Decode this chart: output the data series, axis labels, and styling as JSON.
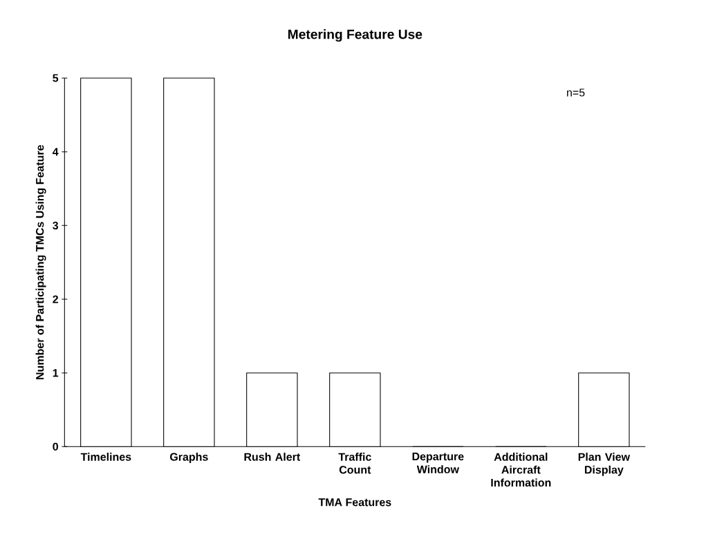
{
  "chart_data": {
    "type": "bar",
    "title": "Metering Feature Use",
    "xlabel": "TMA Features",
    "ylabel": "Number of Participating TMCs Using Feature",
    "categories": [
      "Timelines",
      "Graphs",
      "Rush Alert",
      "Traffic Count",
      "Departure Window",
      "Additional Aircraft Information",
      "Plan View Display"
    ],
    "values": [
      5,
      5,
      1,
      1,
      0,
      0,
      1
    ],
    "color": "#ffffff",
    "ylim": [
      0,
      5
    ],
    "yticks": [
      0,
      1,
      2,
      3,
      4,
      5
    ],
    "annotations": [
      "n=5"
    ]
  }
}
